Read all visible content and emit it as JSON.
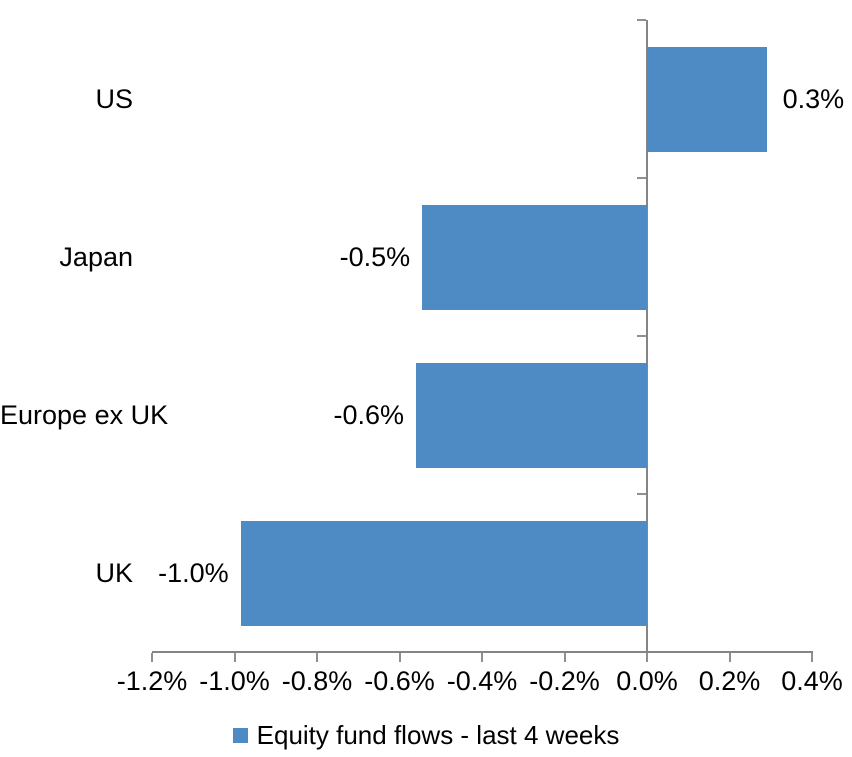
{
  "chart_data": {
    "type": "bar",
    "orientation": "horizontal",
    "title": "",
    "xlabel": "",
    "ylabel": "",
    "categories": [
      "US",
      "Japan",
      "Europe ex UK",
      "UK"
    ],
    "values": [
      0.3,
      -0.5,
      -0.6,
      -1.0
    ],
    "values_precise_pct": [
      0.29,
      -0.545,
      -0.56,
      -0.985
    ],
    "data_labels": [
      "0.3%",
      "-0.5%",
      "-0.6%",
      "-1.0%"
    ],
    "unit": "%",
    "xlim": [
      -1.2,
      0.4
    ],
    "x_ticks": [
      -1.2,
      -1.0,
      -0.8,
      -0.6,
      -0.4,
      -0.2,
      0.0,
      0.2,
      0.4
    ],
    "x_tick_labels": [
      "-1.2%",
      "-1.0%",
      "-0.8%",
      "-0.6%",
      "-0.4%",
      "-0.2%",
      "0.0%",
      "0.2%",
      "0.4%"
    ],
    "grid": false,
    "legend": [
      "Equity fund flows - last 4 weeks"
    ],
    "legend_position": "bottom",
    "colors": {
      "bar": "#4E8AC4",
      "axis": "#858585",
      "tick": "#909090",
      "text": "#000000",
      "background": "#FFFFFF"
    }
  }
}
